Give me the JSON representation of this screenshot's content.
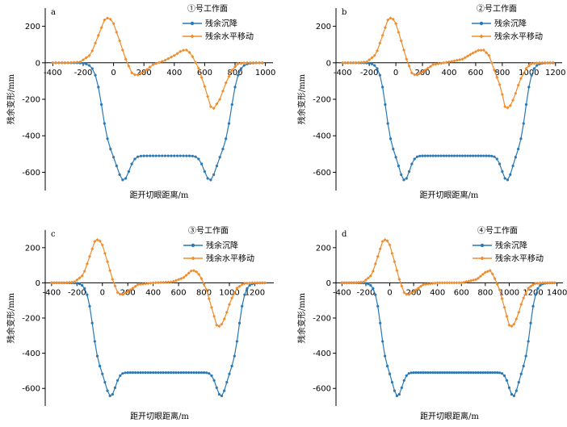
{
  "figure": {
    "legend_labels": [
      "残余沉降",
      "残余水平移动"
    ],
    "colors": {
      "subsidence": "#2a78b4",
      "horizontal": "#f08c2c",
      "axis": "#000000"
    }
  },
  "chart_data": [
    {
      "panel": "a",
      "type": "line",
      "title": "①号工作面",
      "xlabel": "距开切眼距离/m",
      "ylabel": "残余变形/mm",
      "xlim": [
        -450,
        1050
      ],
      "ylim": [
        -700,
        300
      ],
      "xticks": [
        -400,
        -200,
        0,
        200,
        400,
        600,
        800,
        1000
      ],
      "yticks": [
        -600,
        -400,
        -200,
        0,
        200
      ],
      "legend_position": "top-right",
      "subsidence_profile": {
        "start": -75,
        "end": 775,
        "plateau": -510,
        "dip": -645,
        "dip_positions": [
          65,
          635
        ]
      },
      "horizontal_profile": [
        [
          -400,
          0
        ],
        [
          -300,
          0
        ],
        [
          -220,
          5
        ],
        [
          -150,
          45
        ],
        [
          -100,
          150
        ],
        [
          -60,
          235
        ],
        [
          -30,
          250
        ],
        [
          0,
          215
        ],
        [
          40,
          120
        ],
        [
          80,
          20
        ],
        [
          120,
          -55
        ],
        [
          150,
          -70
        ],
        [
          200,
          -50
        ],
        [
          260,
          -10
        ],
        [
          330,
          10
        ],
        [
          400,
          40
        ],
        [
          450,
          68
        ],
        [
          480,
          70
        ],
        [
          510,
          50
        ],
        [
          560,
          -30
        ],
        [
          600,
          -130
        ],
        [
          640,
          -240
        ],
        [
          660,
          -250
        ],
        [
          700,
          -200
        ],
        [
          740,
          -110
        ],
        [
          780,
          -40
        ],
        [
          820,
          -5
        ],
        [
          870,
          0
        ],
        [
          950,
          0
        ]
      ],
      "series": [
        {
          "name": "残余沉降"
        },
        {
          "name": "残余水平移动"
        }
      ]
    },
    {
      "panel": "b",
      "type": "line",
      "title": "②号工作面",
      "xlabel": "距开切眼距离/m",
      "ylabel": "残余变形/mm",
      "xlim": [
        -450,
        1250
      ],
      "ylim": [
        -700,
        300
      ],
      "xticks": [
        -400,
        -200,
        0,
        200,
        400,
        600,
        800,
        1000,
        1200
      ],
      "yticks": [
        -600,
        -400,
        -200,
        0,
        200
      ],
      "legend_position": "top-right",
      "subsidence_profile": {
        "start": -75,
        "end": 975,
        "plateau": -510,
        "dip": -645,
        "dip_positions": [
          65,
          835
        ]
      },
      "horizontal_profile": [
        [
          -400,
          0
        ],
        [
          -300,
          0
        ],
        [
          -220,
          5
        ],
        [
          -150,
          45
        ],
        [
          -100,
          150
        ],
        [
          -60,
          235
        ],
        [
          -30,
          250
        ],
        [
          0,
          215
        ],
        [
          40,
          120
        ],
        [
          80,
          20
        ],
        [
          120,
          -55
        ],
        [
          150,
          -70
        ],
        [
          200,
          -50
        ],
        [
          280,
          -10
        ],
        [
          400,
          5
        ],
        [
          500,
          20
        ],
        [
          570,
          50
        ],
        [
          620,
          68
        ],
        [
          660,
          70
        ],
        [
          700,
          40
        ],
        [
          740,
          -40
        ],
        [
          790,
          -140
        ],
        [
          820,
          -240
        ],
        [
          850,
          -250
        ],
        [
          890,
          -190
        ],
        [
          930,
          -100
        ],
        [
          980,
          -30
        ],
        [
          1020,
          -5
        ],
        [
          1080,
          0
        ],
        [
          1150,
          0
        ]
      ],
      "series": [
        {
          "name": "残余沉降"
        },
        {
          "name": "残余水平移动"
        }
      ]
    },
    {
      "panel": "c",
      "type": "line",
      "title": "③号工作面",
      "xlabel": "距开切眼距离/m",
      "ylabel": "残余变形/mm",
      "xlim": [
        -450,
        1350
      ],
      "ylim": [
        -700,
        300
      ],
      "xticks": [
        -400,
        -200,
        0,
        200,
        400,
        600,
        800,
        1000,
        1200
      ],
      "yticks": [
        -600,
        -400,
        -200,
        0,
        200
      ],
      "legend_position": "top-right",
      "subsidence_profile": {
        "start": -75,
        "end": 1075,
        "plateau": -510,
        "dip": -645,
        "dip_positions": [
          65,
          935
        ]
      },
      "horizontal_profile": [
        [
          -400,
          0
        ],
        [
          -300,
          0
        ],
        [
          -220,
          5
        ],
        [
          -150,
          45
        ],
        [
          -100,
          150
        ],
        [
          -60,
          235
        ],
        [
          -30,
          250
        ],
        [
          0,
          215
        ],
        [
          40,
          120
        ],
        [
          80,
          20
        ],
        [
          120,
          -55
        ],
        [
          150,
          -70
        ],
        [
          200,
          -50
        ],
        [
          280,
          -10
        ],
        [
          400,
          0
        ],
        [
          550,
          5
        ],
        [
          640,
          30
        ],
        [
          700,
          68
        ],
        [
          730,
          70
        ],
        [
          770,
          40
        ],
        [
          820,
          -40
        ],
        [
          860,
          -140
        ],
        [
          900,
          -240
        ],
        [
          930,
          -250
        ],
        [
          970,
          -190
        ],
        [
          1010,
          -100
        ],
        [
          1060,
          -30
        ],
        [
          1110,
          -5
        ],
        [
          1170,
          0
        ],
        [
          1250,
          0
        ]
      ],
      "series": [
        {
          "name": "残余沉降"
        },
        {
          "name": "残余水平移动"
        }
      ]
    },
    {
      "panel": "d",
      "type": "line",
      "title": "④号工作面",
      "xlabel": "距开切眼距离/m",
      "ylabel": "残余变形/mm",
      "xlim": [
        -450,
        1450
      ],
      "ylim": [
        -700,
        300
      ],
      "xticks": [
        -400,
        -200,
        0,
        200,
        400,
        600,
        800,
        1000,
        1200,
        1400
      ],
      "yticks": [
        -600,
        -400,
        -200,
        0,
        200
      ],
      "legend_position": "top-right",
      "subsidence_profile": {
        "start": -75,
        "end": 1175,
        "plateau": -510,
        "dip": -645,
        "dip_positions": [
          65,
          1035
        ]
      },
      "horizontal_profile": [
        [
          -400,
          0
        ],
        [
          -300,
          0
        ],
        [
          -220,
          5
        ],
        [
          -150,
          45
        ],
        [
          -100,
          150
        ],
        [
          -60,
          235
        ],
        [
          -30,
          250
        ],
        [
          0,
          215
        ],
        [
          40,
          120
        ],
        [
          80,
          20
        ],
        [
          120,
          -55
        ],
        [
          150,
          -70
        ],
        [
          200,
          -50
        ],
        [
          280,
          -10
        ],
        [
          400,
          0
        ],
        [
          600,
          0
        ],
        [
          730,
          20
        ],
        [
          800,
          60
        ],
        [
          840,
          70
        ],
        [
          870,
          40
        ],
        [
          920,
          -40
        ],
        [
          960,
          -140
        ],
        [
          1000,
          -240
        ],
        [
          1030,
          -250
        ],
        [
          1070,
          -190
        ],
        [
          1110,
          -100
        ],
        [
          1160,
          -30
        ],
        [
          1210,
          -5
        ],
        [
          1270,
          0
        ],
        [
          1350,
          0
        ]
      ],
      "series": [
        {
          "name": "残余沉降"
        },
        {
          "name": "残余水平移动"
        }
      ]
    }
  ]
}
